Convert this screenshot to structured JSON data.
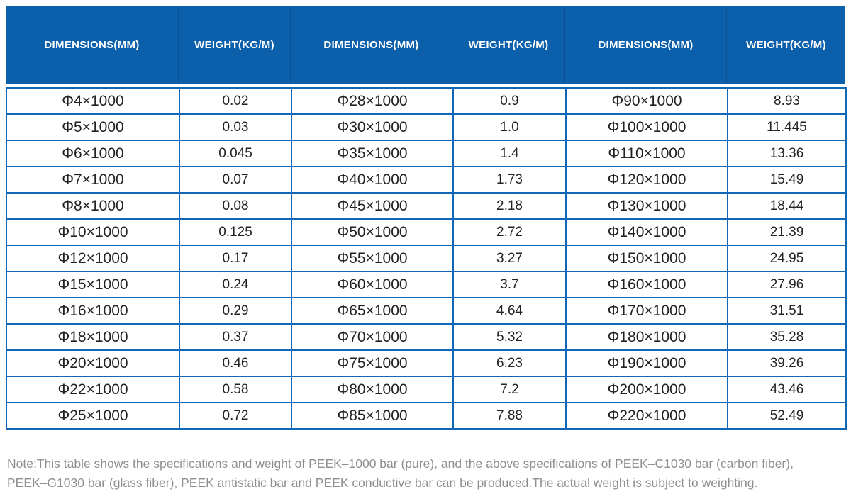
{
  "colors": {
    "header_bg": "#0c60ab",
    "header_divider": "#0a5093",
    "table_border": "#0e68b5",
    "header_text": "#ffffff",
    "cell_text": "#222222",
    "note_text": "#8f8f8f"
  },
  "table": {
    "columns": [
      "DIMENSIONS(MM)",
      "WEIGHT(KG/M)",
      "DIMENSIONS(MM)",
      "WEIGHT(KG/M)",
      "DIMENSIONS(MM)",
      "WEIGHT(KG/M)"
    ],
    "rows": [
      [
        "Φ4×1000",
        "0.02",
        "Φ28×1000",
        "0.9",
        "Φ90×1000",
        "8.93"
      ],
      [
        "Φ5×1000",
        "0.03",
        "Φ30×1000",
        "1.0",
        "Φ100×1000",
        "11.445"
      ],
      [
        "Φ6×1000",
        "0.045",
        "Φ35×1000",
        "1.4",
        "Φ110×1000",
        "13.36"
      ],
      [
        "Φ7×1000",
        "0.07",
        "Φ40×1000",
        "1.73",
        "Φ120×1000",
        "15.49"
      ],
      [
        "Φ8×1000",
        "0.08",
        "Φ45×1000",
        "2.18",
        "Φ130×1000",
        "18.44"
      ],
      [
        "Φ10×1000",
        "0.125",
        "Φ50×1000",
        "2.72",
        "Φ140×1000",
        "21.39"
      ],
      [
        "Φ12×1000",
        "0.17",
        "Φ55×1000",
        "3.27",
        "Φ150×1000",
        "24.95"
      ],
      [
        "Φ15×1000",
        "0.24",
        "Φ60×1000",
        "3.7",
        "Φ160×1000",
        "27.96"
      ],
      [
        "Φ16×1000",
        "0.29",
        "Φ65×1000",
        "4.64",
        "Φ170×1000",
        "31.51"
      ],
      [
        "Φ18×1000",
        "0.37",
        "Φ70×1000",
        "5.32",
        "Φ180×1000",
        "35.28"
      ],
      [
        "Φ20×1000",
        "0.46",
        "Φ75×1000",
        "6.23",
        "Φ190×1000",
        "39.26"
      ],
      [
        "Φ22×1000",
        "0.58",
        "Φ80×1000",
        "7.2",
        "Φ200×1000",
        "43.46"
      ],
      [
        "Φ25×1000",
        "0.72",
        "Φ85×1000",
        "7.88",
        "Φ220×1000",
        "52.49"
      ]
    ]
  },
  "note": {
    "line1": "Note:This table shows the specifications and weight of PEEK–1000 bar (pure), and the above specifications of PEEK–C1030 bar (carbon fiber),",
    "line2": "PEEK–G1030 bar (glass fiber), PEEK antistatic bar and PEEK conductive bar can be produced.The actual weight is subject to weighting."
  }
}
